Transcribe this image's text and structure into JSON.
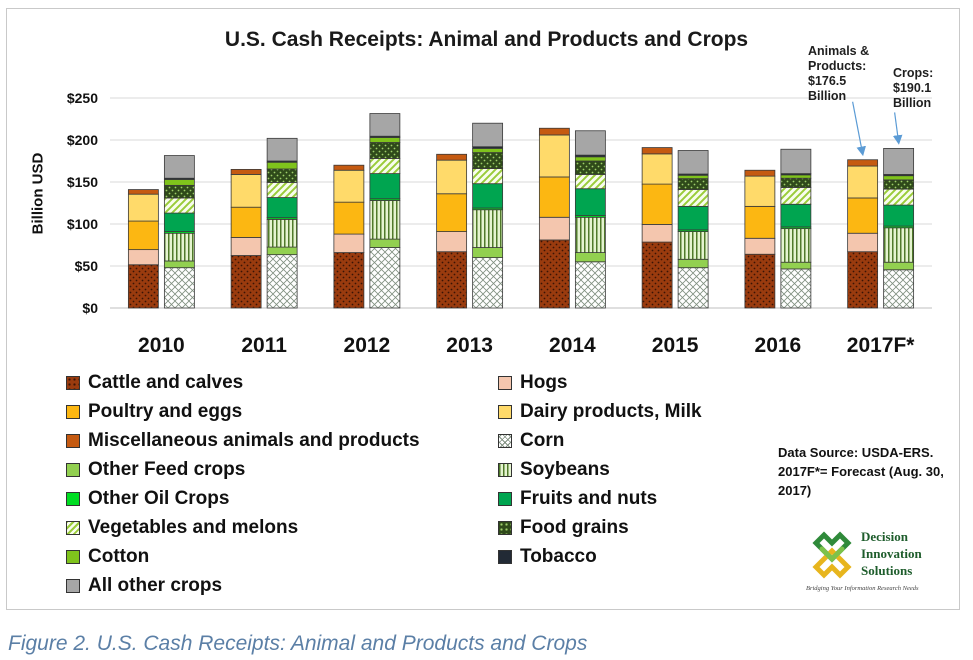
{
  "chart_data": {
    "type": "bar",
    "title": "U.S. Cash Receipts: Animal and Products and Crops",
    "ylabel": "Billion USD",
    "ylim": [
      0,
      250
    ],
    "yticks": [
      "$0",
      "$50",
      "$100",
      "$150",
      "$200",
      "$250"
    ],
    "ytick_values": [
      0,
      50,
      100,
      150,
      200,
      250
    ],
    "grid": true,
    "stacked": true,
    "categories": [
      "2010",
      "2011",
      "2012",
      "2013",
      "2014",
      "2015",
      "2016",
      "2017F*"
    ],
    "stacks": [
      "Animals",
      "Crops"
    ],
    "series": [
      {
        "name": "Cattle and calves",
        "stack": "Animals",
        "values": [
          51.5,
          62.5,
          66.0,
          67.0,
          81.0,
          78.5,
          64.0,
          67.0
        ]
      },
      {
        "name": "Hogs",
        "stack": "Animals",
        "values": [
          18.0,
          21.5,
          22.0,
          24.0,
          27.0,
          21.0,
          19.0,
          22.0
        ]
      },
      {
        "name": "Poultry and eggs",
        "stack": "Animals",
        "values": [
          34.0,
          36.0,
          38.0,
          45.0,
          48.0,
          48.0,
          38.0,
          42.0
        ]
      },
      {
        "name": "Dairy products, Milk",
        "stack": "Animals",
        "values": [
          32.0,
          39.0,
          38.0,
          40.0,
          50.0,
          36.0,
          36.0,
          38.0
        ]
      },
      {
        "name": "Miscellaneous animals and products",
        "stack": "Animals",
        "values": [
          5.5,
          6.0,
          6.0,
          7.0,
          8.0,
          7.5,
          7.0,
          7.5
        ]
      },
      {
        "name": "Corn",
        "stack": "Crops",
        "values": [
          48.0,
          63.5,
          72.0,
          60.0,
          55.0,
          48.0,
          46.5,
          45.5
        ]
      },
      {
        "name": "Other Feed crops",
        "stack": "Crops",
        "values": [
          8.0,
          9.0,
          10.0,
          12.0,
          11.0,
          10.0,
          8.0,
          9.0
        ]
      },
      {
        "name": "Soybeans",
        "stack": "Crops",
        "values": [
          33.0,
          33.0,
          46.0,
          45.0,
          42.0,
          33.0,
          40.0,
          41.0
        ]
      },
      {
        "name": "Other Oil Crops",
        "stack": "Crops",
        "values": [
          2.0,
          2.0,
          2.0,
          2.0,
          2.0,
          2.0,
          2.0,
          2.0
        ]
      },
      {
        "name": "Fruits and nuts",
        "stack": "Crops",
        "values": [
          22.0,
          24.0,
          30.0,
          29.0,
          32.0,
          28.0,
          27.0,
          25.0
        ]
      },
      {
        "name": "Vegetables and melons",
        "stack": "Crops",
        "values": [
          18.0,
          18.0,
          18.0,
          18.0,
          17.0,
          20.0,
          20.0,
          19.0
        ]
      },
      {
        "name": "Food grains",
        "stack": "Crops",
        "values": [
          15.0,
          16.0,
          19.0,
          19.0,
          16.0,
          13.0,
          11.0,
          11.0
        ]
      },
      {
        "name": "Cotton",
        "stack": "Crops",
        "values": [
          7.0,
          8.0,
          6.0,
          5.0,
          5.0,
          4.0,
          4.0,
          5.0
        ]
      },
      {
        "name": "Tobacco",
        "stack": "Crops",
        "values": [
          1.5,
          1.5,
          1.5,
          2.0,
          2.0,
          1.5,
          1.5,
          1.5
        ]
      },
      {
        "name": "All other crops",
        "stack": "Crops",
        "values": [
          27.0,
          27.0,
          27.0,
          28.0,
          29.0,
          28.0,
          29.0,
          31.0
        ]
      }
    ],
    "annotations": [
      {
        "id": "animals",
        "text": "Animals &\nProducts:\n$176.5\nBillion"
      },
      {
        "id": "crops",
        "text": "Crops:\n$190.1\nBillion"
      }
    ]
  },
  "colors": {
    "Cattle and calves": "#9a3b0e",
    "Hogs": "#f4c6ae",
    "Poultry and eggs": "#fcb712",
    "Dairy products, Milk": "#ffda6a",
    "Miscellaneous animals and products": "#c55a11",
    "Corn": "#ffffff",
    "Other Feed crops": "#92d050",
    "Soybeans": "#d6efb8",
    "Other Oil Crops": "#00dd22",
    "Fruits and nuts": "#00a550",
    "Vegetables and melons": "#f3fbe2",
    "Food grains": "#385723",
    "Cotton": "#7fc31c",
    "Tobacco": "#222a35",
    "All other crops": "#a6a6a6",
    "grid": "#d9d9d9",
    "arrow": "#5b9bd5"
  },
  "source_note": "Data Source: USDA-ERS.  2017F*= Forecast (Aug. 30, 2017)",
  "logo": {
    "line1": "Decision",
    "line2": "Innovation",
    "line3": "Solutions",
    "tagline": "Bridging Your Information Research Needs"
  },
  "caption": "Figure 2. U.S. Cash Receipts: Animal and Products and Crops"
}
